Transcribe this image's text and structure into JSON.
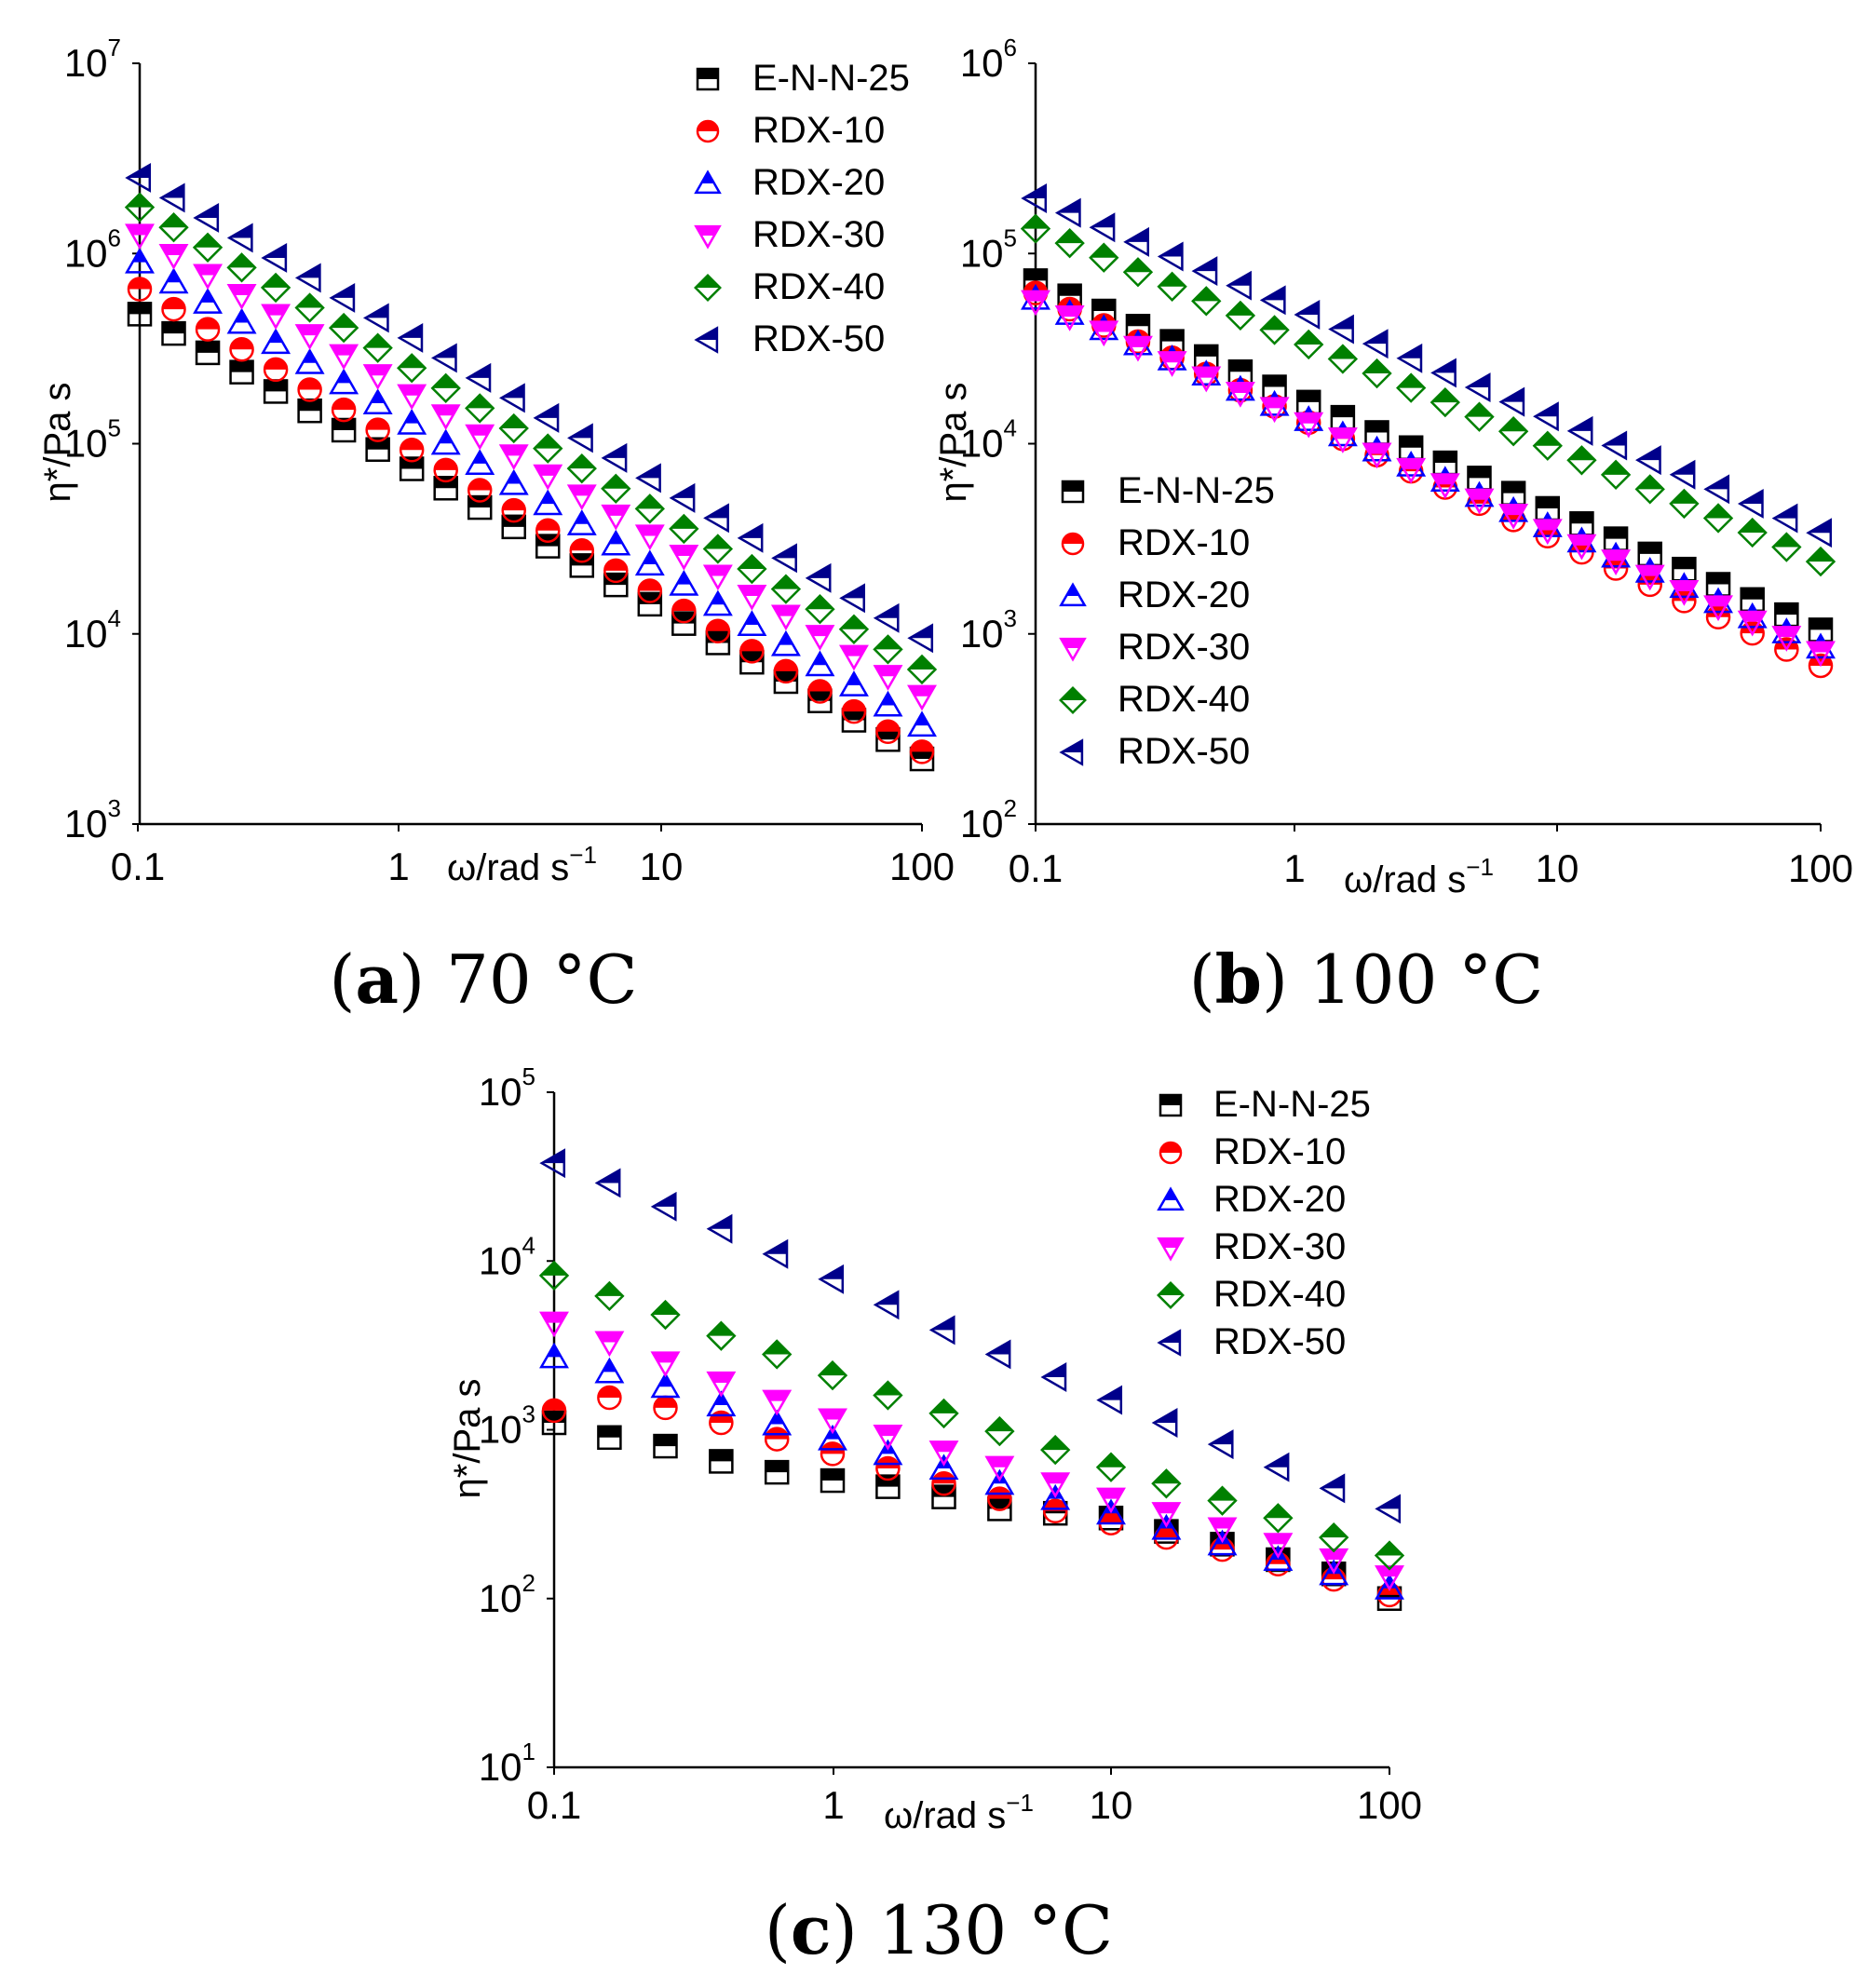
{
  "chart_data": [
    {
      "type": "scatter",
      "panel_letter": "a",
      "caption_text": " 70 °C",
      "xlabel": "ω/rad s",
      "xlabel_sup": "−1",
      "ylabel": "η*/Pa s",
      "xscale": "log",
      "yscale": "log",
      "xlim": [
        0.1,
        100
      ],
      "ylim": [
        1000,
        10000000
      ],
      "xticks": [
        "0.1",
        "1",
        "10",
        "100"
      ],
      "yticks": [
        {
          "base": "10",
          "exp": "3"
        },
        {
          "base": "10",
          "exp": "4"
        },
        {
          "base": "10",
          "exp": "5"
        },
        {
          "base": "10",
          "exp": "6"
        },
        {
          "base": "10",
          "exp": "7"
        }
      ],
      "legend_position": "top-right",
      "series": [
        {
          "name": "E-N-N-25",
          "marker": "square",
          "color": "#000000",
          "y0": 480000,
          "y1": 2200
        },
        {
          "name": "RDX-10",
          "marker": "circle",
          "color": "#ff0000",
          "y0": 650000,
          "y1": 2400
        },
        {
          "name": "RDX-20",
          "marker": "triangle-up",
          "color": "#0000ff",
          "y0": 900000,
          "y1": 3300
        },
        {
          "name": "RDX-30",
          "marker": "triangle-down",
          "color": "#ff00ff",
          "y0": 1250000,
          "y1": 4700
        },
        {
          "name": "RDX-40",
          "marker": "diamond",
          "color": "#008000",
          "y0": 1750000,
          "y1": 6500
        },
        {
          "name": "RDX-50",
          "marker": "triangle-left",
          "color": "#00008b",
          "y0": 2500000,
          "y1": 9500
        }
      ]
    },
    {
      "type": "scatter",
      "panel_letter": "b",
      "caption_text": " 100 °C",
      "xlabel": "ω/rad s",
      "xlabel_sup": "−1",
      "ylabel": "η*/Pa s",
      "xscale": "log",
      "yscale": "log",
      "xlim": [
        0.1,
        100
      ],
      "ylim": [
        100,
        1000000
      ],
      "xticks": [
        "0.1",
        "1",
        "10",
        "100"
      ],
      "yticks": [
        {
          "base": "10",
          "exp": "2"
        },
        {
          "base": "10",
          "exp": "3"
        },
        {
          "base": "10",
          "exp": "4"
        },
        {
          "base": "10",
          "exp": "5"
        },
        {
          "base": "10",
          "exp": "6"
        }
      ],
      "legend_position": "bottom-left",
      "series": [
        {
          "name": "E-N-N-25",
          "marker": "square",
          "color": "#000000",
          "y0": 72000,
          "y1": 1050
        },
        {
          "name": "RDX-10",
          "marker": "circle",
          "color": "#ff0000",
          "y0": 62000,
          "y1": 680
        },
        {
          "name": "RDX-20",
          "marker": "triangle-up",
          "color": "#0000ff",
          "y0": 58000,
          "y1": 850
        },
        {
          "name": "RDX-30",
          "marker": "triangle-down",
          "color": "#ff00ff",
          "y0": 56000,
          "y1": 800
        },
        {
          "name": "RDX-40",
          "marker": "diamond",
          "color": "#008000",
          "y0": 135000,
          "y1": 2400
        },
        {
          "name": "RDX-50",
          "marker": "triangle-left",
          "color": "#00008b",
          "y0": 195000,
          "y1": 3400
        }
      ]
    },
    {
      "type": "scatter",
      "panel_letter": "c",
      "caption_text": " 130 °C",
      "xlabel": "ω/rad s",
      "xlabel_sup": "−1",
      "ylabel": "η*/Pa s",
      "xscale": "log",
      "yscale": "log",
      "xlim": [
        0.1,
        100
      ],
      "ylim": [
        10,
        100000
      ],
      "xticks": [
        "0.1",
        "1",
        "10",
        "100"
      ],
      "yticks": [
        {
          "base": "10",
          "exp": "1"
        },
        {
          "base": "10",
          "exp": "2"
        },
        {
          "base": "10",
          "exp": "3"
        },
        {
          "base": "10",
          "exp": "4"
        },
        {
          "base": "10",
          "exp": "5"
        }
      ],
      "legend_position": "top-right",
      "series": [
        {
          "name": "E-N-N-25",
          "marker": "square",
          "color": "#000000",
          "x": [
            0.1,
            0.158,
            0.251,
            0.398,
            0.631,
            1,
            1.58,
            2.51,
            3.98,
            6.31,
            10,
            15.8,
            25.1,
            39.8,
            63.1,
            100
          ],
          "y": [
            1100,
            900,
            800,
            650,
            560,
            500,
            460,
            400,
            340,
            320,
            300,
            250,
            210,
            170,
            140,
            100
          ]
        },
        {
          "name": "RDX-10",
          "marker": "circle",
          "color": "#ff0000",
          "x": [
            0.1,
            0.158,
            0.251,
            0.398,
            0.631,
            1,
            1.58,
            2.51,
            3.98,
            6.31,
            10,
            15.8,
            25.1,
            39.8,
            63.1,
            100
          ],
          "y": [
            1300,
            1550,
            1350,
            1100,
            880,
            720,
            590,
            480,
            390,
            330,
            280,
            230,
            195,
            160,
            130,
            105
          ]
        },
        {
          "name": "RDX-20",
          "marker": "triangle-up",
          "color": "#0000ff",
          "x": [
            0.1,
            0.158,
            0.251,
            0.398,
            0.631,
            1,
            1.58,
            2.51,
            3.98,
            6.31,
            10,
            15.8,
            25.1,
            39.8,
            63.1,
            100
          ],
          "y": [
            2700,
            2200,
            1800,
            1400,
            1080,
            880,
            720,
            590,
            480,
            390,
            320,
            260,
            210,
            170,
            140,
            115
          ]
        },
        {
          "name": "RDX-30",
          "marker": "triangle-down",
          "color": "#ff00ff",
          "x": [
            0.1,
            0.158,
            0.251,
            0.398,
            0.631,
            1,
            1.58,
            2.51,
            3.98,
            6.31,
            10,
            15.8,
            25.1,
            39.8,
            63.1,
            100
          ],
          "y": [
            4300,
            3300,
            2500,
            1900,
            1480,
            1150,
            920,
            740,
            600,
            480,
            390,
            320,
            260,
            210,
            170,
            135
          ]
        },
        {
          "name": "RDX-40",
          "marker": "diamond",
          "color": "#008000",
          "x": [
            0.1,
            0.158,
            0.251,
            0.398,
            0.631,
            1,
            1.58,
            2.51,
            3.98,
            6.31,
            10,
            15.8,
            25.1,
            39.8,
            63.1,
            100
          ],
          "y": [
            8200,
            6200,
            4800,
            3600,
            2800,
            2100,
            1600,
            1250,
            980,
            760,
            600,
            480,
            380,
            300,
            230,
            180
          ]
        },
        {
          "name": "RDX-50",
          "marker": "triangle-left",
          "color": "#00008b",
          "x": [
            0.1,
            0.158,
            0.251,
            0.398,
            0.631,
            1,
            1.58,
            2.51,
            3.98,
            6.31,
            10,
            15.8,
            25.1,
            39.8,
            63.1,
            100
          ],
          "y": [
            38000,
            29000,
            21000,
            15500,
            11000,
            7800,
            5500,
            3900,
            2800,
            2050,
            1500,
            1100,
            820,
            600,
            450,
            340
          ]
        }
      ]
    }
  ]
}
